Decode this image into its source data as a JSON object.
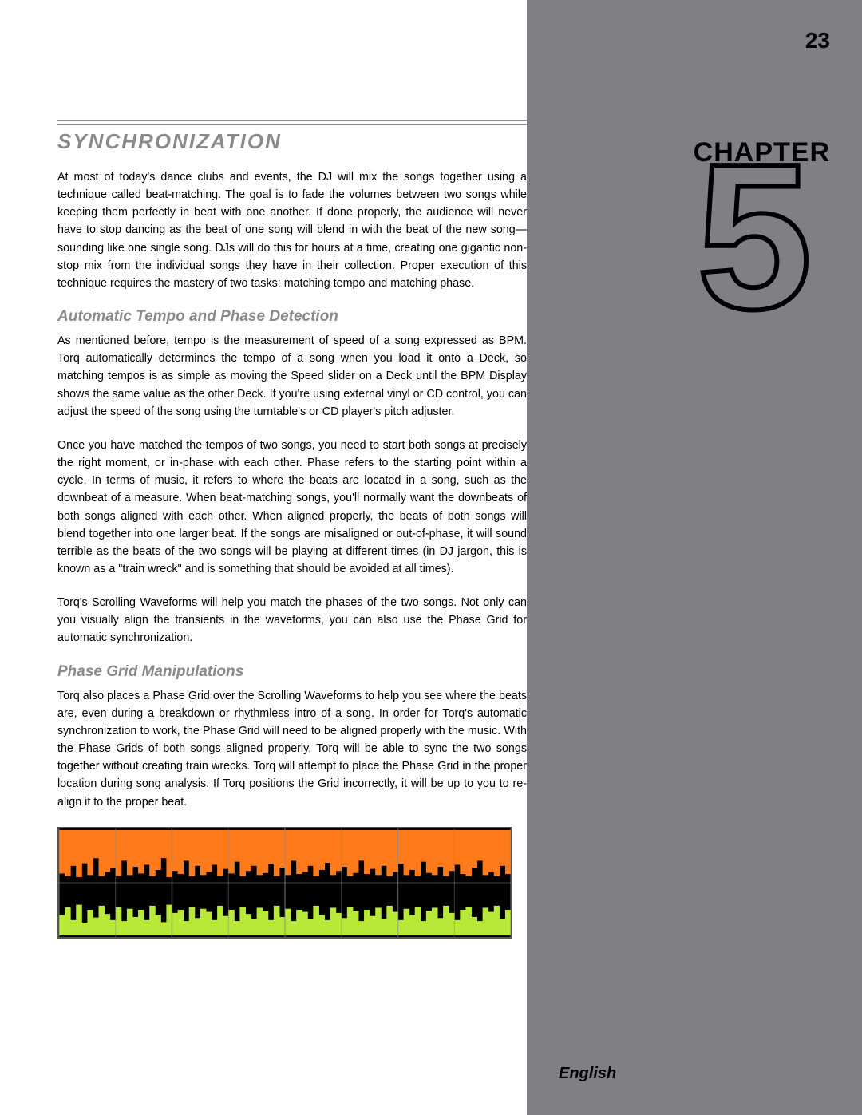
{
  "page_number": "23",
  "chapter_label": "CHAPTER",
  "chapter_number": "5",
  "language": "English",
  "title": "SYNCHRONIZATION",
  "intro_para": "At most of today's dance clubs and events, the DJ will mix the songs together using a technique called beat-matching. The goal is to fade the volumes between two songs while keeping them perfectly in beat with one another. If done properly, the audience will never have to stop dancing as the beat of one song will blend in with the beat of the new song—sounding like one single song. DJs will do this for hours at a time, creating one gigantic non-stop mix from the individual songs they have in their collection. Proper execution of this technique requires the mastery of two tasks: matching tempo and matching phase.",
  "section1": {
    "heading": "Automatic Tempo and Phase Detection",
    "p1": "As mentioned before, tempo is the measurement of speed of a song expressed as BPM. Torq automatically determines the tempo of a song when you load it onto a Deck, so matching tempos is as simple as moving the Speed slider on a Deck until the BPM Display shows the same value as the other Deck. If you're using external vinyl or CD control, you can adjust the speed of the song using the turntable's or CD player's pitch adjuster.",
    "p2": "Once you have matched the tempos of two songs, you need to start both songs at precisely the right moment, or in-phase with each other. Phase refers to the starting point within a cycle. In terms of music, it refers to where the beats are located in a song, such as the downbeat of a measure. When beat-matching songs, you'll normally want the downbeats of both songs aligned with each other. When aligned properly, the beats of both songs will blend together into one larger beat. If the songs are misaligned or out-of-phase, it will sound terrible as the beats of the two songs will be playing at different times (in DJ jargon, this is known as a \"train wreck\" and is something that should be avoided at all times).",
    "p3": "Torq's Scrolling Waveforms will help you match the phases of the two songs. Not only can you visually align the transients in the waveforms, you can also use the Phase Grid for automatic synchronization."
  },
  "section2": {
    "heading": "Phase Grid Manipulations",
    "p1": "Torq also places a Phase Grid over the Scrolling Waveforms to help you see where the beats are, even during a breakdown or rhythmless intro of a song. In order for Torq's automatic synchronization to work, the Phase Grid will need to be aligned properly with the music. With the Phase Grids of both songs aligned properly, Torq will be able to sync the two songs together without creating train wrecks. Torq will attempt to place the Phase Grid in the proper location during song analysis. If Torq positions the Grid incorrectly, it will be up to you to re-align it to the proper beat."
  },
  "waveform": {
    "top_color": "#ff7a1a",
    "bottom_color": "#b8e838",
    "grid_color": "#888888",
    "background": "#000000",
    "grid_count": 8,
    "top_heights": [
      0.85,
      0.9,
      0.7,
      0.92,
      0.65,
      0.88,
      0.55,
      0.9,
      0.82,
      0.75,
      0.9,
      0.6,
      0.88,
      0.72,
      0.85,
      0.68,
      0.9,
      0.78,
      0.55,
      0.92,
      0.8,
      0.86,
      0.6,
      0.9,
      0.7,
      0.88,
      0.82,
      0.68,
      0.9,
      0.76,
      0.85,
      0.62,
      0.9,
      0.8,
      0.7,
      0.88,
      0.84,
      0.66,
      0.9,
      0.74,
      0.88,
      0.6,
      0.86,
      0.82,
      0.7,
      0.9,
      0.78,
      0.64,
      0.88,
      0.8,
      0.72,
      0.9,
      0.84,
      0.6,
      0.86,
      0.76,
      0.88,
      0.7,
      0.9,
      0.82,
      0.66,
      0.88,
      0.78,
      0.9,
      0.62,
      0.84,
      0.88,
      0.72,
      0.9,
      0.8,
      0.68,
      0.86,
      0.9,
      0.74,
      0.6,
      0.88,
      0.82,
      0.9,
      0.7,
      0.86
    ],
    "bottom_heights": [
      0.4,
      0.55,
      0.3,
      0.6,
      0.25,
      0.5,
      0.35,
      0.58,
      0.42,
      0.3,
      0.55,
      0.28,
      0.52,
      0.36,
      0.5,
      0.3,
      0.58,
      0.4,
      0.26,
      0.6,
      0.44,
      0.5,
      0.28,
      0.56,
      0.34,
      0.52,
      0.46,
      0.3,
      0.58,
      0.38,
      0.5,
      0.28,
      0.56,
      0.42,
      0.32,
      0.54,
      0.48,
      0.3,
      0.58,
      0.36,
      0.52,
      0.28,
      0.5,
      0.46,
      0.32,
      0.58,
      0.4,
      0.3,
      0.54,
      0.44,
      0.34,
      0.56,
      0.48,
      0.28,
      0.5,
      0.38,
      0.54,
      0.32,
      0.58,
      0.46,
      0.3,
      0.52,
      0.4,
      0.56,
      0.28,
      0.48,
      0.54,
      0.34,
      0.58,
      0.44,
      0.3,
      0.5,
      0.56,
      0.36,
      0.28,
      0.54,
      0.46,
      0.58,
      0.32,
      0.5
    ]
  }
}
